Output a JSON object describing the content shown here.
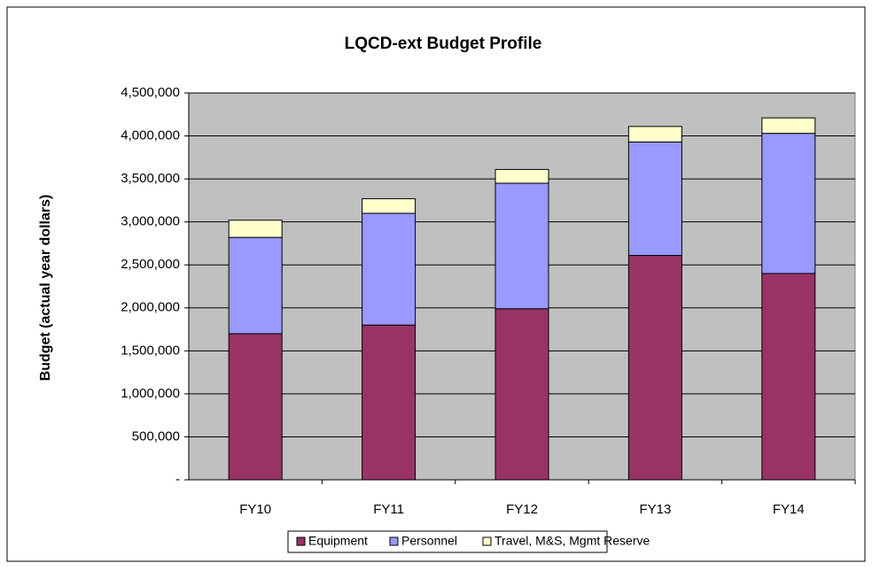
{
  "chart_data": {
    "type": "stacked_bar",
    "title": "LQCD-ext Budget Profile",
    "y_label": "Budget (actual year dollars)",
    "categories": [
      "FY10",
      "FY11",
      "FY12",
      "FY13",
      "FY14"
    ],
    "series": [
      {
        "name": "Equipment",
        "color": "#993366",
        "values": [
          1700000,
          1800000,
          1990000,
          2610000,
          2400000
        ]
      },
      {
        "name": "Personnel",
        "color": "#9999FF",
        "values": [
          1120000,
          1300000,
          1460000,
          1320000,
          1630000
        ]
      },
      {
        "name": "Travel, M&S, Mgmt Reserve",
        "color": "#FFFFCC",
        "values": [
          200000,
          170000,
          160000,
          180000,
          180000
        ]
      }
    ],
    "ylim": [
      0,
      4500000
    ],
    "yticks": [
      {
        "value": 0,
        "label": "-"
      },
      {
        "value": 500000,
        "label": "500,000"
      },
      {
        "value": 1000000,
        "label": "1,000,000"
      },
      {
        "value": 1500000,
        "label": "1,500,000"
      },
      {
        "value": 2000000,
        "label": "2,000,000"
      },
      {
        "value": 2500000,
        "label": "2,500,000"
      },
      {
        "value": 3000000,
        "label": "3,000,000"
      },
      {
        "value": 3500000,
        "label": "3,500,000"
      },
      {
        "value": 4000000,
        "label": "4,000,000"
      },
      {
        "value": 4500000,
        "label": "4,500,000"
      }
    ],
    "grid": true,
    "legend": "bottom",
    "plot_background": "#C0C0C0"
  }
}
